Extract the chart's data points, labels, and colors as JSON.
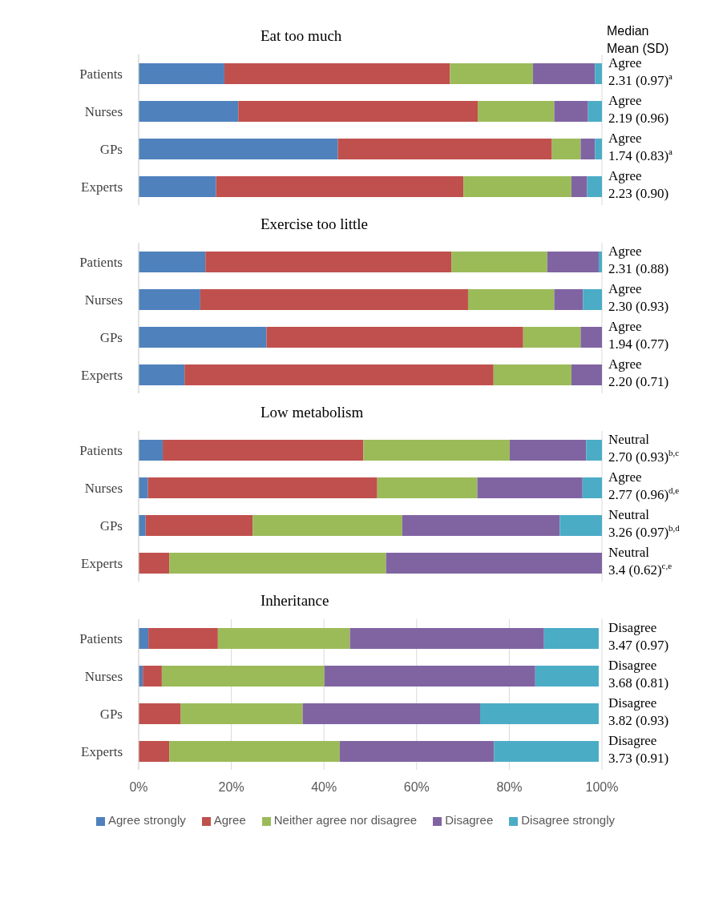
{
  "chart_data": [
    {
      "type": "bar",
      "orientation": "horizontal",
      "stacked": true,
      "title": "Eat too much",
      "categories": [
        "Patients",
        "Nurses",
        "GPs",
        "Experts"
      ],
      "series": [
        {
          "color": "#4f81bd",
          "values": [
            18.5,
            21.5,
            43.0,
            16.7
          ]
        },
        {
          "color": "#c0504d",
          "values": [
            48.7,
            51.7,
            46.2,
            53.4
          ]
        },
        {
          "color": "#9bbb59",
          "values": [
            17.9,
            16.5,
            6.2,
            23.3
          ]
        },
        {
          "color": "#8064a2",
          "values": [
            13.4,
            7.3,
            3.1,
            3.4
          ]
        },
        {
          "color": "#4bacc6",
          "values": [
            1.5,
            3.0,
            1.5,
            3.2
          ]
        }
      ],
      "xlim": [
        0,
        100
      ],
      "xticks": [
        {
          "value": 0,
          "label": null
        },
        {
          "value": 20,
          "label": null
        },
        {
          "value": 40,
          "label": null
        },
        {
          "value": 60,
          "label": null
        },
        {
          "value": 80,
          "label": null
        },
        {
          "value": 100,
          "label": null
        }
      ],
      "tick_labels": "y",
      "grid": "x",
      "annotations": [
        "Median\nMean (SD)",
        "Agree\n2.31 (0.97)$^{a}$",
        "Agree\n2.19 (0.96)",
        "Agree\n1.74 (0.83)$^{a}$",
        "Agree\n2.23 (0.90)"
      ]
    },
    {
      "type": "bar",
      "orientation": "horizontal",
      "stacked": true,
      "title": "Exercise too little",
      "categories": [
        "Patients",
        "Nurses",
        "GPs",
        "Experts"
      ],
      "series": [
        {
          "color": "#4f81bd",
          "values": [
            14.4,
            13.3,
            27.6,
            9.9
          ]
        },
        {
          "color": "#c0504d",
          "values": [
            53.1,
            57.8,
            55.4,
            66.7
          ]
        },
        {
          "color": "#9bbb59",
          "values": [
            20.7,
            18.6,
            12.4,
            16.8
          ]
        },
        {
          "color": "#8064a2",
          "values": [
            11.1,
            6.2,
            4.6,
            6.6
          ]
        },
        {
          "color": "#4bacc6",
          "values": [
            0.7,
            4.1,
            0,
            0
          ]
        }
      ],
      "xlim": [
        0,
        100
      ],
      "xticks": [
        {
          "value": 0,
          "label": null
        },
        {
          "value": 20,
          "label": null
        },
        {
          "value": 40,
          "label": null
        },
        {
          "value": 60,
          "label": null
        },
        {
          "value": 80,
          "label": null
        },
        {
          "value": 100,
          "label": null
        }
      ],
      "tick_labels": "y",
      "grid": "x",
      "annotations": [
        "Agree\n2.31 (0.88)",
        "Agree\n2.30 (0.93)",
        "Agree\n1.94 (0.77)",
        "Agree\n2.20 (0.71)"
      ]
    },
    {
      "type": "bar",
      "orientation": "horizontal",
      "stacked": true,
      "title": "Low metabolism",
      "categories": [
        "Patients",
        "Nurses",
        "GPs",
        "Experts"
      ],
      "series": [
        {
          "color": "#4f81bd",
          "values": [
            5.2,
            2.0,
            1.5,
            0
          ]
        },
        {
          "color": "#c0504d",
          "values": [
            43.3,
            49.5,
            23.1,
            6.6
          ]
        },
        {
          "color": "#9bbb59",
          "values": [
            31.6,
            21.6,
            32.3,
            46.8
          ]
        },
        {
          "color": "#8064a2",
          "values": [
            16.5,
            22.7,
            34.0,
            46.6
          ]
        },
        {
          "color": "#4bacc6",
          "values": [
            3.4,
            4.2,
            9.1,
            0
          ]
        }
      ],
      "xlim": [
        0,
        100
      ],
      "xticks": [
        {
          "value": 0,
          "label": null
        },
        {
          "value": 20,
          "label": null
        },
        {
          "value": 40,
          "label": null
        },
        {
          "value": 60,
          "label": null
        },
        {
          "value": 80,
          "label": null
        },
        {
          "value": 100,
          "label": null
        }
      ],
      "tick_labels": "y",
      "grid": "x",
      "annotations": [
        "Neutral\n2.70 (0.93)$^{b,c}$",
        "Agree\n2.77 (0.96)$^{d,e}$",
        "Neutral\n3.26 (0.97)$^{b,d}$",
        "Neutral\n3.4 (0.62)$^{c,e}$"
      ]
    },
    {
      "type": "bar",
      "orientation": "horizontal",
      "stacked": true,
      "title": "Inheritance",
      "categories": [
        "Patients",
        "Nurses",
        "GPs",
        "Experts"
      ],
      "series": [
        {
          "name": "Agree strongly",
          "color": "#4f81bd",
          "values": [
            2.1,
            0.9,
            0,
            0
          ]
        },
        {
          "name": "Agree",
          "color": "#c0504d",
          "values": [
            15.0,
            4.1,
            9.1,
            6.6
          ]
        },
        {
          "name": "Neither agree nor disagree",
          "color": "#9bbb59",
          "values": [
            28.5,
            35.1,
            26.3,
            36.8
          ]
        },
        {
          "name": "Disagree",
          "color": "#8064a2",
          "values": [
            41.9,
            45.5,
            38.3,
            33.3
          ]
        },
        {
          "name": "Disagree strongly",
          "color": "#4bacc6",
          "values": [
            11.8,
            13.7,
            25.6,
            22.6
          ]
        }
      ],
      "xlim": [
        0,
        100
      ],
      "xticks": [
        {
          "value": 0,
          "label": "0%"
        },
        {
          "value": 20,
          "label": "20%"
        },
        {
          "value": 40,
          "label": "40%"
        },
        {
          "value": 60,
          "label": "60%"
        },
        {
          "value": 80,
          "label": "80%"
        },
        {
          "value": 100,
          "label": "100%"
        }
      ],
      "grid": "x",
      "legend": "bottom",
      "annotations": [
        "Disagree\n3.47 (0.97)",
        "Disagree\n3.68 (0.81)",
        "Disagree\n3.82 (0.93)",
        "Disagree\n3.73 (0.91)"
      ]
    }
  ]
}
